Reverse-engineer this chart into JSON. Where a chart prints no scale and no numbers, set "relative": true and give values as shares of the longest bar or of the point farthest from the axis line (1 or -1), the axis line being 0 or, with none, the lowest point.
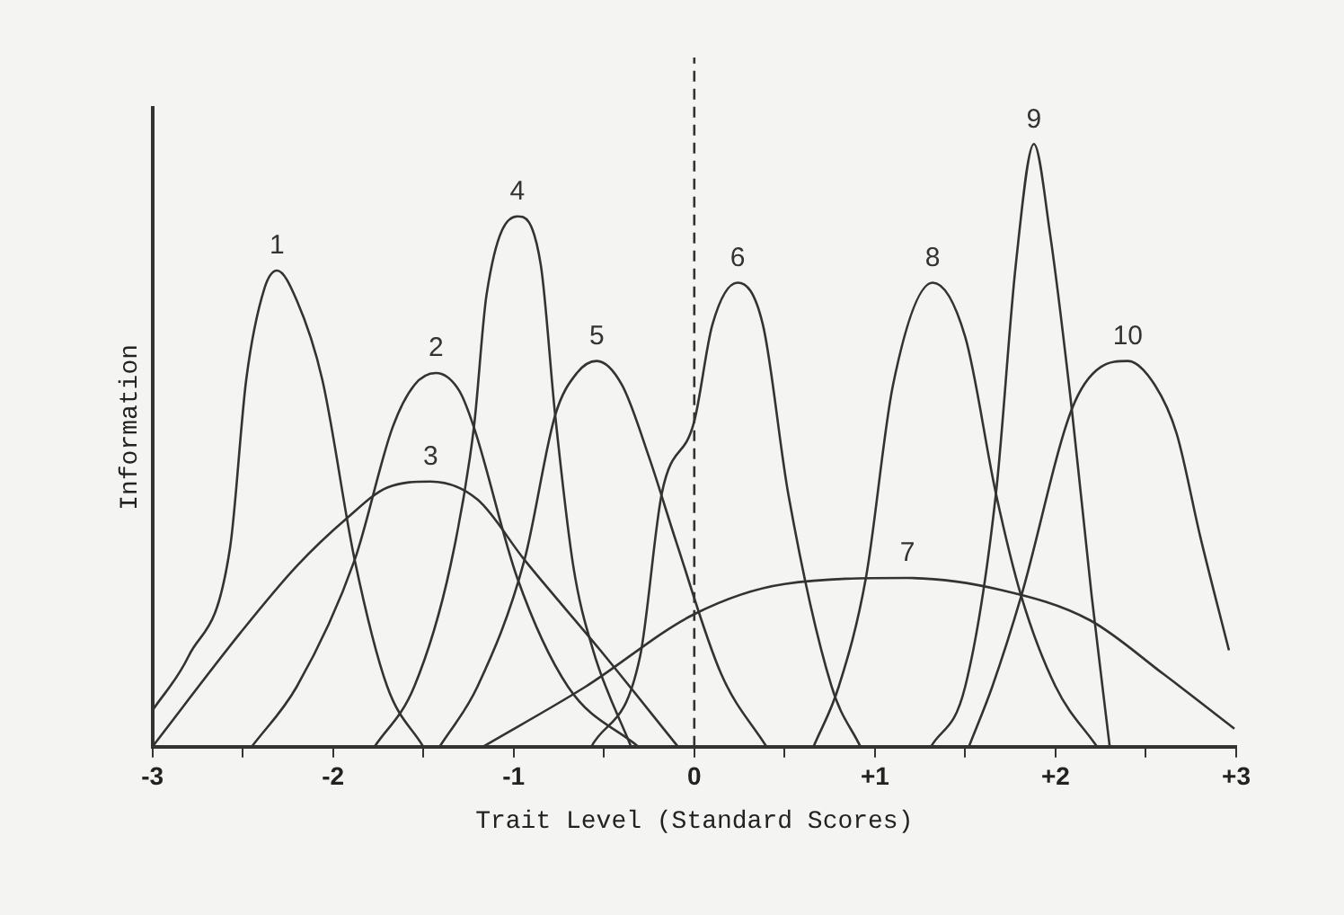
{
  "chart_data": {
    "type": "line",
    "xlabel": "Trait Level (Standard Scores)",
    "ylabel": "Information",
    "relative": true,
    "legend": false,
    "grid": false,
    "marker": "none",
    "line_style": "solid",
    "xlim": [
      -3,
      3
    ],
    "xticks": [
      -3,
      {
        "value": -2.5,
        "label": null
      },
      -2,
      {
        "value": -1.5,
        "label": null
      },
      -1,
      {
        "value": -0.5,
        "label": null
      },
      0,
      {
        "value": 0.5,
        "label": null
      },
      {
        "value": 1,
        "label": "+1"
      },
      {
        "value": 1.5,
        "label": null
      },
      {
        "value": 2,
        "label": "+2"
      },
      {
        "value": 2.5,
        "label": null
      },
      {
        "value": 3,
        "label": "+3"
      }
    ],
    "ref_lines": [
      {
        "axis": "x",
        "value": 0,
        "color": "#333333",
        "line_style": "dashed"
      }
    ],
    "series": [
      {
        "name": "1",
        "color": "#333333",
        "x": [
          -3,
          -2.8,
          -2.57,
          -2.48,
          -2.38,
          -2.31,
          -2.2,
          -2.06,
          -1.88,
          -1.7,
          -1.5
        ],
        "values": [
          0.06,
          0.15,
          0.33,
          0.61,
          0.76,
          0.79,
          0.74,
          0.61,
          0.31,
          0.1,
          0
        ]
      },
      {
        "name": "2",
        "color": "#333333",
        "x": [
          -2.45,
          -2.2,
          -1.88,
          -1.67,
          -1.55,
          -1.43,
          -1.3,
          -1.22,
          -0.98,
          -0.7,
          -0.31
        ],
        "values": [
          0,
          0.1,
          0.31,
          0.53,
          0.6,
          0.62,
          0.59,
          0.53,
          0.28,
          0.1,
          0
        ]
      },
      {
        "name": "3",
        "color": "#333333",
        "x": [
          -3,
          -2.51,
          -2.2,
          -1.92,
          -1.7,
          -1.46,
          -1.2,
          -0.94,
          -0.52,
          -0.09
        ],
        "values": [
          0,
          0.19,
          0.3,
          0.38,
          0.43,
          0.44,
          0.41,
          0.31,
          0.16,
          0
        ]
      },
      {
        "name": "4",
        "color": "#333333",
        "x": [
          -1.77,
          -1.55,
          -1.35,
          -1.22,
          -1.15,
          -0.98,
          -0.85,
          -0.77,
          -0.67,
          -0.56,
          -0.35
        ],
        "values": [
          0,
          0.1,
          0.3,
          0.53,
          0.75,
          0.88,
          0.8,
          0.55,
          0.3,
          0.16,
          0
        ]
      },
      {
        "name": "5",
        "color": "#333333",
        "x": [
          -1.41,
          -1.2,
          -0.94,
          -0.77,
          -0.65,
          -0.54,
          -0.4,
          -0.25,
          -0.1,
          0.15,
          0.4
        ],
        "values": [
          0,
          0.1,
          0.31,
          0.55,
          0.62,
          0.64,
          0.6,
          0.48,
          0.34,
          0.12,
          0
        ]
      },
      {
        "name": "6",
        "color": "#333333",
        "x": [
          -0.57,
          -0.3,
          -0.18,
          0,
          0.1,
          0.24,
          0.38,
          0.52,
          0.76,
          0.92
        ],
        "values": [
          0,
          0.15,
          0.42,
          0.54,
          0.7,
          0.77,
          0.7,
          0.42,
          0.1,
          0
        ]
      },
      {
        "name": "7",
        "color": "#333333",
        "x": [
          -1.17,
          -0.6,
          0,
          0.5,
          1.18,
          1.7,
          2.19,
          2.6,
          2.99
        ],
        "values": [
          0,
          0.1,
          0.22,
          0.27,
          0.28,
          0.26,
          0.21,
          0.12,
          0.03
        ]
      },
      {
        "name": "8",
        "color": "#333333",
        "x": [
          0.66,
          0.8,
          0.95,
          1.1,
          1.32,
          1.5,
          1.67,
          1.81,
          2,
          2.23
        ],
        "values": [
          0,
          0.1,
          0.28,
          0.6,
          0.77,
          0.68,
          0.42,
          0.25,
          0.1,
          0
        ]
      },
      {
        "name": "9",
        "color": "#333333",
        "x": [
          1.31,
          1.5,
          1.67,
          1.78,
          1.88,
          1.97,
          2.09,
          2.2,
          2.3
        ],
        "values": [
          0,
          0.1,
          0.42,
          0.8,
          1,
          0.85,
          0.56,
          0.25,
          0
        ]
      },
      {
        "name": "10",
        "color": "#333333",
        "x": [
          1.52,
          1.65,
          1.81,
          2.09,
          2.25,
          2.4,
          2.55,
          2.67,
          2.8,
          2.96
        ],
        "values": [
          0,
          0.1,
          0.25,
          0.56,
          0.63,
          0.64,
          0.6,
          0.52,
          0.35,
          0.16
        ]
      }
    ]
  }
}
